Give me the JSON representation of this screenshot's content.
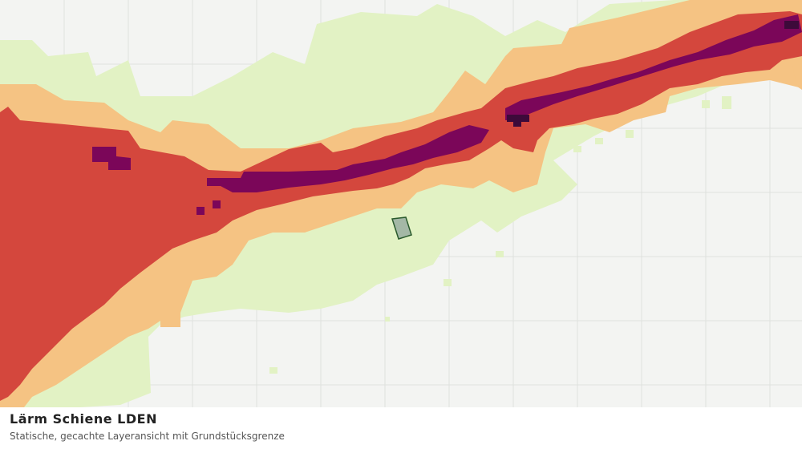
{
  "caption": {
    "title": "Lärm Schiene LDEN",
    "subtitle": "Statische, gecachte Layeransicht mit Grundstücksgrenze"
  },
  "map": {
    "background_color": "#f3f4f2",
    "grid_color": "#dfe2de",
    "noise_classes": [
      {
        "name": "level-1",
        "color": "#e2f2c4"
      },
      {
        "name": "level-2",
        "color": "#f5c383"
      },
      {
        "name": "level-3",
        "color": "#d4473d"
      },
      {
        "name": "level-4",
        "color": "#7b0659"
      },
      {
        "name": "level-5",
        "color": "#3d0a3a"
      }
    ],
    "parcel": {
      "fill": "#a4b8a6",
      "stroke": "#2a5a2d"
    }
  }
}
